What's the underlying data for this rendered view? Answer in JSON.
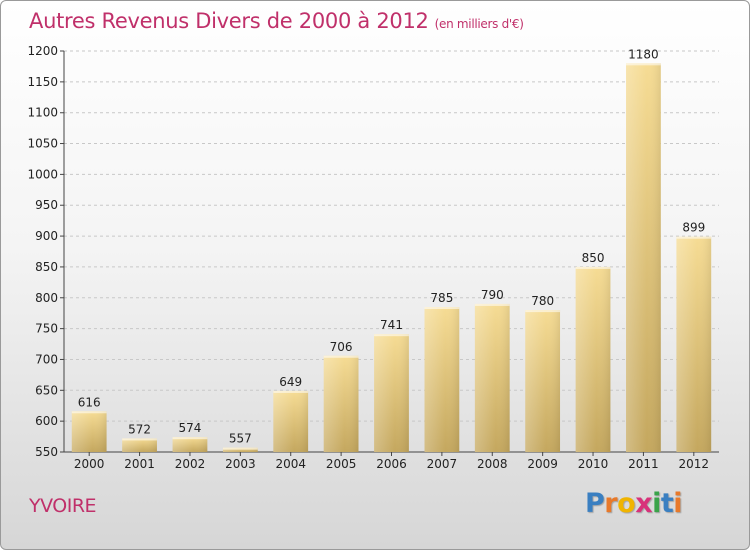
{
  "header": {
    "title": "Autres Revenus Divers de 2000 à 2012",
    "unit": "(en milliers d'€)"
  },
  "footer": {
    "place": "YVOIRE",
    "logo_letters": [
      "P",
      "r",
      "o",
      "x",
      "i",
      "t",
      "i"
    ],
    "logo_colors": [
      "#3a7fc1",
      "#e8792a",
      "#f0b400",
      "#d8327a",
      "#3aa34a",
      "#3a7fc1",
      "#e8792a"
    ]
  },
  "chart_data": {
    "type": "bar",
    "title": "Autres Revenus Divers de 2000 à 2012",
    "subtitle": "(en milliers d'€)",
    "xlabel": "",
    "ylabel": "",
    "categories": [
      "2000",
      "2001",
      "2002",
      "2003",
      "2004",
      "2005",
      "2006",
      "2007",
      "2008",
      "2009",
      "2010",
      "2011",
      "2012"
    ],
    "values": [
      616,
      572,
      574,
      557,
      649,
      706,
      741,
      785,
      790,
      780,
      850,
      1180,
      899
    ],
    "ylim": [
      550,
      1200
    ],
    "yticks": [
      550,
      600,
      650,
      700,
      750,
      800,
      850,
      900,
      950,
      1000,
      1050,
      1100,
      1150,
      1200
    ],
    "grid": true,
    "legend": "none",
    "bar_color_top": "#f6dc94",
    "bar_color_bottom": "#c4a75e"
  }
}
